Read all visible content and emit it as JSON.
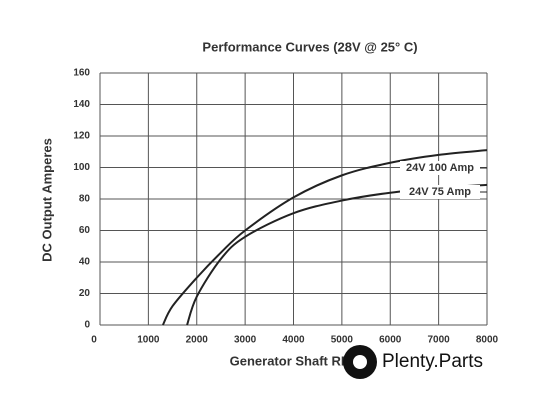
{
  "chart_data": {
    "type": "line",
    "title": "Performance Curves (28V @ 25° C)",
    "x_label": "Generator Shaft RPM",
    "y_label": "DC Output Amperes",
    "xlim": [
      0,
      8000
    ],
    "xticks": [
      0,
      1000,
      2000,
      3000,
      4000,
      5000,
      6000,
      7000,
      8000
    ],
    "ylim": [
      0,
      160
    ],
    "yticks": [
      0,
      20,
      40,
      60,
      80,
      100,
      120,
      140,
      160
    ],
    "grid": true,
    "series": [
      {
        "name": "24V 100 Amp",
        "color": "#222222",
        "x": [
          1300,
          1500,
          2000,
          2500,
          3000,
          4000,
          5000,
          6000,
          7000,
          8000
        ],
        "values": [
          0,
          12,
          30,
          46,
          60,
          81,
          95,
          103,
          108,
          111
        ]
      },
      {
        "name": "24V 75 Amp",
        "color": "#222222",
        "x": [
          1800,
          2000,
          2500,
          3000,
          4000,
          5000,
          6000,
          7000,
          8000
        ],
        "values": [
          0,
          18,
          42,
          56,
          71,
          79,
          84,
          87,
          89
        ]
      }
    ],
    "watermark": "Plenty.Parts"
  }
}
